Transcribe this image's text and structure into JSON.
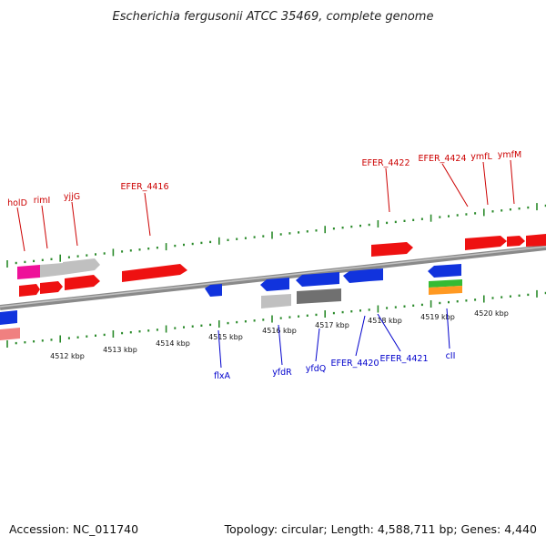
{
  "title": "Escherichia fergusonii ATCC 35469, complete genome",
  "footer": {
    "accession": "Accession: NC_011740",
    "summary": "Topology: circular; Length: 4,588,711 bp; Genes: 4,440"
  },
  "colors": {
    "forward_label": "#cc0000",
    "reverse_label": "#0000cc",
    "red": "#ee1111",
    "blue": "#1133dd",
    "gray": "#c0c0c0",
    "dark_gray": "#707070",
    "magenta": "#ee1199",
    "green": "#33bb33",
    "orange": "#ff9922",
    "pink": "#f08080",
    "backbone": "#8a8a8a"
  },
  "kbp_ticks": [
    "4512 kbp",
    "4513 kbp",
    "4514 kbp",
    "4515 kbp",
    "4516 kbp",
    "4517 kbp",
    "4518 kbp",
    "4519 kbp",
    "4520 kbp"
  ],
  "forward_genes": [
    "holD",
    "rimI",
    "yjjG",
    "EFER_4416",
    "EFER_4422",
    "EFER_4424",
    "ymfL",
    "ymfM"
  ],
  "reverse_genes": [
    "flxA",
    "yfdR",
    "yfdQ",
    "EFER_4420",
    "EFER_4421",
    "cII"
  ]
}
